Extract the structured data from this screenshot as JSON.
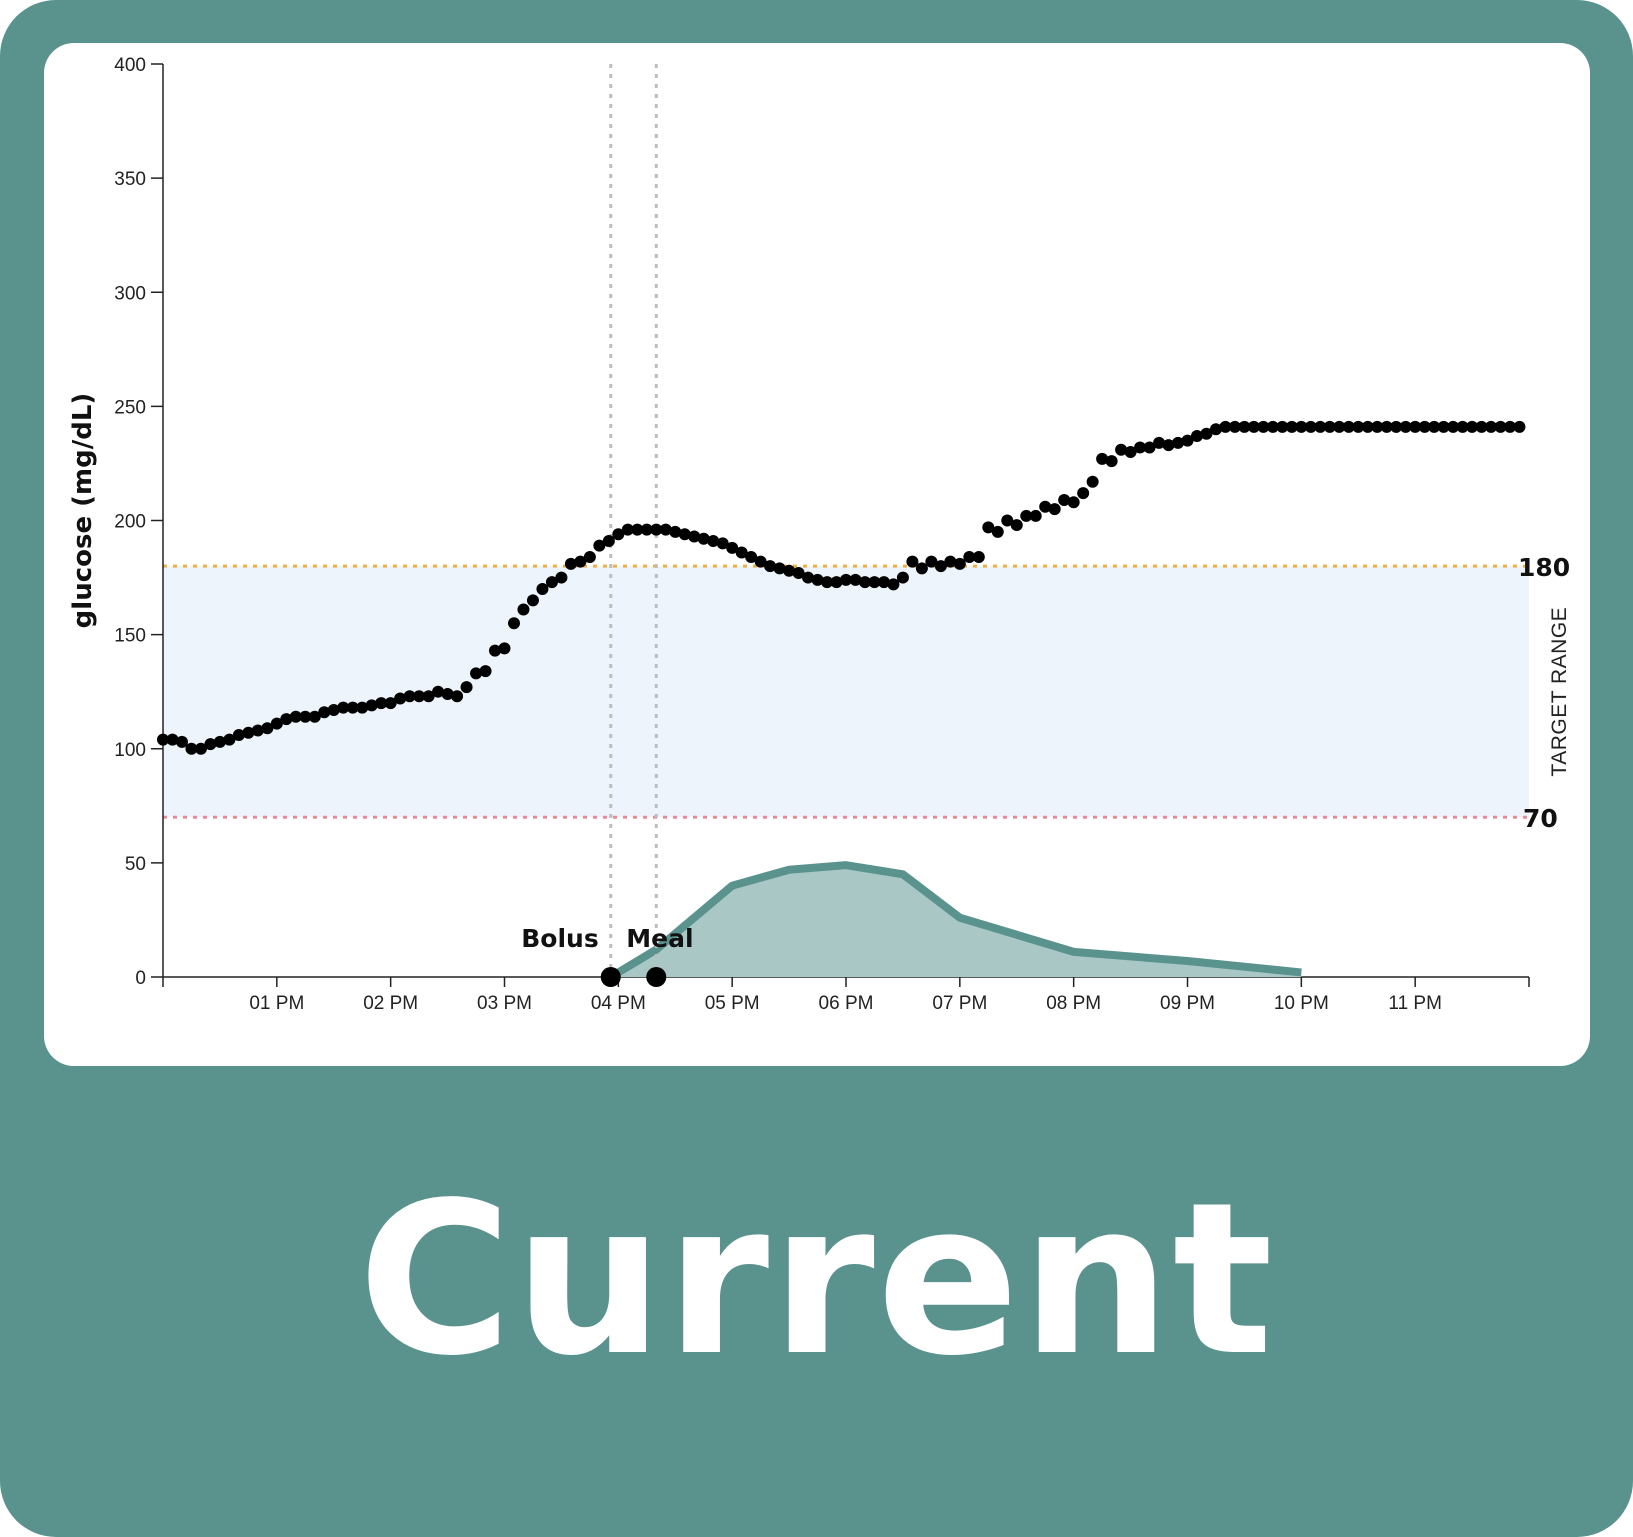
{
  "caption": "Current",
  "colors": {
    "card": "#5a938e",
    "panel": "#ffffff",
    "target_band": "#edf4fc",
    "upper_line": "#f0b040",
    "lower_line": "#e98b96",
    "event_line": "#bdbdbd",
    "glucose_dot": "#000000",
    "carb_stroke": "#5a938e",
    "carb_fill": "#a9c8c5"
  },
  "chart_data": {
    "type": "scatter",
    "ylabel": "glucose (mg/dL)",
    "ylim": [
      0,
      400
    ],
    "y_ticks": [
      0,
      50,
      100,
      150,
      200,
      250,
      300,
      350,
      400
    ],
    "xlim": [
      "12:00",
      "24:00"
    ],
    "x_ticks": [
      {
        "time": "13:00",
        "label": "01 PM"
      },
      {
        "time": "14:00",
        "label": "02 PM"
      },
      {
        "time": "15:00",
        "label": "03 PM"
      },
      {
        "time": "16:00",
        "label": "04 PM"
      },
      {
        "time": "17:00",
        "label": "05 PM"
      },
      {
        "time": "18:00",
        "label": "06 PM"
      },
      {
        "time": "19:00",
        "label": "07 PM"
      },
      {
        "time": "20:00",
        "label": "08 PM"
      },
      {
        "time": "21:00",
        "label": "09 PM"
      },
      {
        "time": "22:00",
        "label": "10 PM"
      },
      {
        "time": "23:00",
        "label": "11 PM"
      }
    ],
    "target_range": {
      "low": 70,
      "high": 180,
      "low_label": "70",
      "high_label": "180",
      "title": "TARGET RANGE"
    },
    "events": [
      {
        "label": "Bolus",
        "time": "15:56"
      },
      {
        "label": "Meal",
        "time": "16:20"
      }
    ],
    "glucose_series": {
      "interval_minutes": 5,
      "start": "12:00",
      "values": [
        104,
        104,
        103,
        100,
        100,
        102,
        103,
        104,
        106,
        107,
        108,
        109,
        111,
        113,
        114,
        114,
        114,
        116,
        117,
        118,
        118,
        118,
        119,
        120,
        120,
        122,
        123,
        123,
        123,
        125,
        124,
        123,
        127,
        133,
        134,
        143,
        144,
        155,
        161,
        165,
        170,
        173,
        175,
        181,
        182,
        184,
        189,
        191,
        194,
        196,
        196,
        196,
        196,
        196,
        195,
        194,
        193,
        192,
        191,
        190,
        188,
        186,
        184,
        182,
        180,
        179,
        178,
        177,
        175,
        174,
        173,
        173,
        174,
        174,
        173,
        173,
        173,
        172,
        175,
        182,
        179,
        182,
        180,
        182,
        181,
        184,
        184,
        197,
        195,
        200,
        198,
        202,
        202,
        206,
        205,
        209,
        208,
        212,
        217,
        227,
        226,
        231,
        230,
        232,
        232,
        234,
        233,
        234,
        235,
        237,
        238,
        240,
        241,
        241,
        241,
        241,
        241,
        241,
        241,
        241,
        241,
        241,
        241,
        241,
        241,
        241,
        241,
        241,
        241,
        241,
        241,
        241,
        241,
        241,
        241,
        241,
        241,
        241,
        241,
        241,
        241,
        241,
        241,
        241
      ]
    },
    "carb_curve": [
      {
        "time": "15:56",
        "value": 0
      },
      {
        "time": "16:20",
        "value": 12
      },
      {
        "time": "17:00",
        "value": 40
      },
      {
        "time": "17:30",
        "value": 47
      },
      {
        "time": "18:00",
        "value": 49
      },
      {
        "time": "18:30",
        "value": 45
      },
      {
        "time": "19:00",
        "value": 26
      },
      {
        "time": "20:00",
        "value": 11
      },
      {
        "time": "21:00",
        "value": 7
      },
      {
        "time": "22:00",
        "value": 2
      }
    ]
  }
}
